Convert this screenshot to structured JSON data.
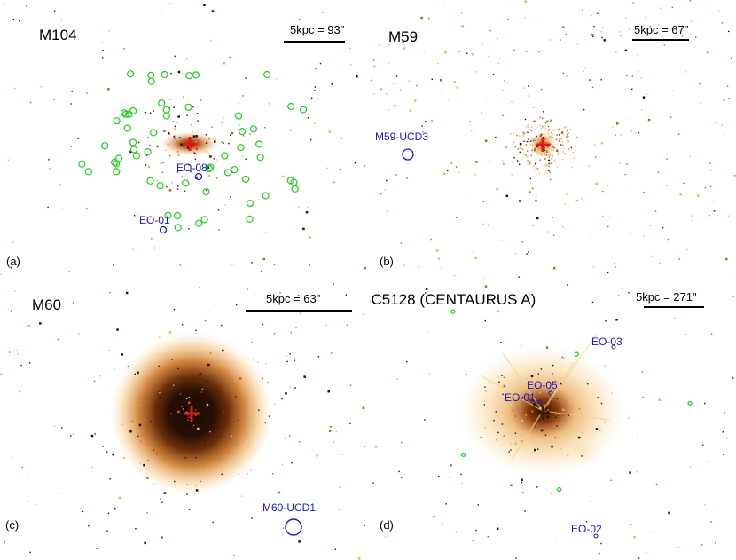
{
  "panels": {
    "a": {
      "title": "M104",
      "scale": "5kpc = 93\"",
      "label": "(a)",
      "objects": [
        {
          "name": "EO-08"
        },
        {
          "name": "EO-01"
        }
      ]
    },
    "b": {
      "title": "M59",
      "scale": "5kpc = 67\"",
      "label": "(b)",
      "objects": [
        {
          "name": "M59-UCD3"
        }
      ]
    },
    "c": {
      "title": "M60",
      "scale": "5kpc = 63\"",
      "label": "(c)",
      "objects": [
        {
          "name": "M60-UCD1"
        }
      ]
    },
    "d": {
      "title": "NGC5128 (CENTAURUS A)",
      "scale": "5kpc = 271\"",
      "label": "(d)",
      "objects": [
        {
          "name": "EO-03"
        },
        {
          "name": "EO-05"
        },
        {
          "name": "EO-01"
        },
        {
          "name": "EO-02"
        }
      ]
    }
  },
  "colors": {
    "core": "#3a1a08",
    "halo": "#c8701e",
    "glow": "#f6d290",
    "center_marker": "#e01818",
    "cluster_circle": "#22cc22",
    "target_circle": "#1a1acc"
  }
}
